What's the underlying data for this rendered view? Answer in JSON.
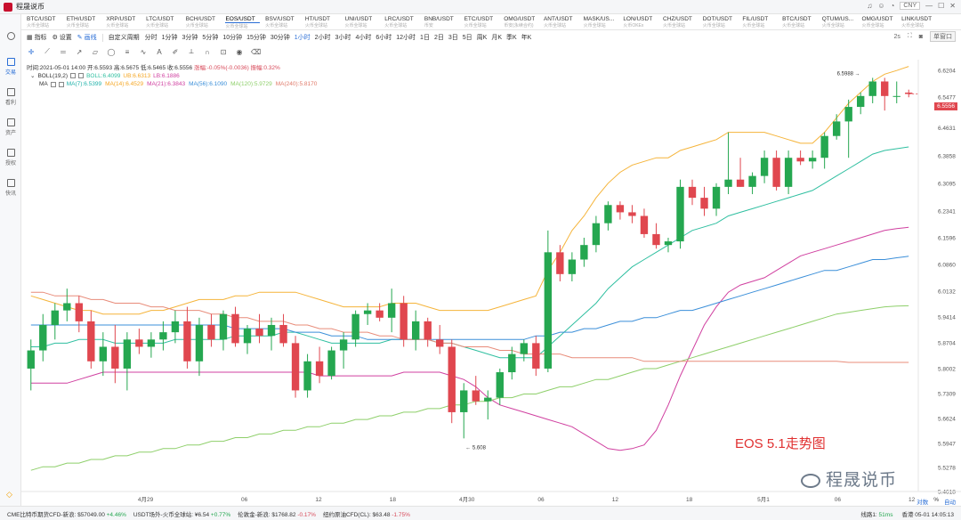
{
  "app": {
    "title": "程晟说币",
    "currency": "CNY"
  },
  "tickers": [
    {
      "sym": "BTC/USDT",
      "sub": "火币全球站"
    },
    {
      "sym": "ETH/USDT",
      "sub": "火币全球站"
    },
    {
      "sym": "XRP/USDT",
      "sub": "火币全球站"
    },
    {
      "sym": "LTC/USDT",
      "sub": "火币全球站"
    },
    {
      "sym": "BCH/USDT",
      "sub": "火币全球站"
    },
    {
      "sym": "EOS/USDT",
      "sub": "火币全球站"
    },
    {
      "sym": "BSV/USDT",
      "sub": "火币全球站"
    },
    {
      "sym": "HT/USDT",
      "sub": "火币全球站"
    },
    {
      "sym": "UNI/USDT",
      "sub": "火币全球站"
    },
    {
      "sym": "LRC/USDT",
      "sub": "火币全球站"
    },
    {
      "sym": "BNB/USDT",
      "sub": "币安"
    },
    {
      "sym": "ETC/USDT",
      "sub": "火币全球站"
    },
    {
      "sym": "OMG/USDT",
      "sub": "币安(永续合约)"
    },
    {
      "sym": "ANT/USDT",
      "sub": "火币全球站"
    },
    {
      "sym": "MASK/US...",
      "sub": "火币全球站"
    },
    {
      "sym": "LON/USDT",
      "sub": "火币OKEx"
    },
    {
      "sym": "CHZ/USDT",
      "sub": "火币全球站"
    },
    {
      "sym": "DOT/USDT",
      "sub": "火币全球站"
    },
    {
      "sym": "FIL/USDT",
      "sub": "火币全球站"
    },
    {
      "sym": "BTC/USDT",
      "sub": "火币全球站"
    },
    {
      "sym": "QTUM/US...",
      "sub": "火币全球站"
    },
    {
      "sym": "OMG/USDT",
      "sub": "火币全球站"
    },
    {
      "sym": "LINK/USDT",
      "sub": "火币全球站"
    }
  ],
  "sidebar": [
    {
      "label": "交易"
    },
    {
      "label": "看利"
    },
    {
      "label": "资产"
    },
    {
      "label": "授权"
    },
    {
      "label": "快讯"
    }
  ],
  "toolbar": {
    "indicator": "指标",
    "settings": "设置",
    "drawing": "画线",
    "custom_period": "自定义周期",
    "timeframes": [
      "分时",
      "1分钟",
      "3分钟",
      "5分钟",
      "10分钟",
      "15分钟",
      "30分钟",
      "1小时",
      "2小时",
      "3小时",
      "4小时",
      "6小时",
      "12小时",
      "1日",
      "2日",
      "3日",
      "5日",
      "周K",
      "月K",
      "季K",
      "年K"
    ],
    "active_timeframe": "1小时",
    "right": [
      "2s",
      "单窗口"
    ]
  },
  "info": {
    "time": "时间:2021-05-01 14:00",
    "open": "开:6.5593",
    "high": "高:6.5675",
    "low": "低:6.5465",
    "close": "收:6.5556",
    "change": "涨幅:-0.05%(-0.0036)",
    "amplitude": "振幅:0.32%"
  },
  "boll": {
    "name": "BOLL(19,2)",
    "boll": "BOLL:6.4099",
    "ub": "UB:6.6313",
    "lb": "LB:6.1886"
  },
  "ma": {
    "name": "MA",
    "items": [
      {
        "label": "MA(7):6.5399",
        "color": "#20b2aa"
      },
      {
        "label": "MA(14):6.4529",
        "color": "#f5a623"
      },
      {
        "label": "MA(21):6.3843",
        "color": "#d040a0"
      },
      {
        "label": "MA(56):6.1090",
        "color": "#3b8fd9"
      },
      {
        "label": "MA(120):5.9729",
        "color": "#8ecf6a"
      },
      {
        "label": "MA(240):5.8170",
        "color": "#e07a6a"
      }
    ]
  },
  "price_axis": [
    "6.6204",
    "6.5477",
    "6.4631",
    "6.3858",
    "6.3095",
    "6.2341",
    "6.1596",
    "6.0860",
    "6.0132",
    "5.9414",
    "5.8704",
    "5.8002",
    "5.7309",
    "5.6624",
    "5.5947",
    "5.5278",
    "5.4618"
  ],
  "current_price": "6.5556",
  "high_label": "6.5988",
  "low_label": "5.608",
  "time_axis": [
    "4月29",
    "06",
    "12",
    "18",
    "4月30",
    "06",
    "12",
    "18",
    "5月1",
    "06",
    "12"
  ],
  "colors": {
    "up": "#25a750",
    "down": "#e0474f",
    "accent": "#2a6ed6"
  },
  "chart_data": {
    "type": "candlestick",
    "title": "EOS 5.1走势图",
    "ylim": [
      5.4618,
      6.65
    ],
    "candles": [
      {
        "o": 5.8,
        "h": 5.88,
        "l": 5.74,
        "c": 5.85
      },
      {
        "o": 5.85,
        "h": 5.95,
        "l": 5.82,
        "c": 5.92
      },
      {
        "o": 5.92,
        "h": 5.98,
        "l": 5.88,
        "c": 5.96
      },
      {
        "o": 5.96,
        "h": 6.02,
        "l": 5.93,
        "c": 5.98
      },
      {
        "o": 5.98,
        "h": 6.0,
        "l": 5.9,
        "c": 5.93
      },
      {
        "o": 5.93,
        "h": 5.96,
        "l": 5.8,
        "c": 5.82
      },
      {
        "o": 5.82,
        "h": 5.9,
        "l": 5.78,
        "c": 5.86
      },
      {
        "o": 5.86,
        "h": 5.92,
        "l": 5.76,
        "c": 5.8
      },
      {
        "o": 5.8,
        "h": 5.9,
        "l": 5.74,
        "c": 5.88
      },
      {
        "o": 5.88,
        "h": 5.91,
        "l": 5.84,
        "c": 5.86
      },
      {
        "o": 5.86,
        "h": 5.9,
        "l": 5.83,
        "c": 5.88
      },
      {
        "o": 5.88,
        "h": 5.93,
        "l": 5.85,
        "c": 5.9
      },
      {
        "o": 5.9,
        "h": 5.96,
        "l": 5.87,
        "c": 5.93
      },
      {
        "o": 5.93,
        "h": 5.97,
        "l": 5.8,
        "c": 5.82
      },
      {
        "o": 5.82,
        "h": 5.94,
        "l": 5.78,
        "c": 5.92
      },
      {
        "o": 5.92,
        "h": 5.95,
        "l": 5.86,
        "c": 5.88
      },
      {
        "o": 5.88,
        "h": 5.96,
        "l": 5.85,
        "c": 5.95
      },
      {
        "o": 5.95,
        "h": 5.97,
        "l": 5.86,
        "c": 5.87
      },
      {
        "o": 5.87,
        "h": 5.92,
        "l": 5.84,
        "c": 5.91
      },
      {
        "o": 5.91,
        "h": 5.95,
        "l": 5.87,
        "c": 5.89
      },
      {
        "o": 5.89,
        "h": 5.94,
        "l": 5.85,
        "c": 5.92
      },
      {
        "o": 5.92,
        "h": 5.95,
        "l": 5.86,
        "c": 5.87
      },
      {
        "o": 5.87,
        "h": 5.89,
        "l": 5.72,
        "c": 5.74
      },
      {
        "o": 5.74,
        "h": 5.84,
        "l": 5.72,
        "c": 5.82
      },
      {
        "o": 5.82,
        "h": 5.86,
        "l": 5.76,
        "c": 5.78
      },
      {
        "o": 5.78,
        "h": 5.86,
        "l": 5.77,
        "c": 5.85
      },
      {
        "o": 5.85,
        "h": 5.9,
        "l": 5.8,
        "c": 5.88
      },
      {
        "o": 5.88,
        "h": 5.96,
        "l": 5.86,
        "c": 5.95
      },
      {
        "o": 5.95,
        "h": 5.98,
        "l": 5.92,
        "c": 5.96
      },
      {
        "o": 5.96,
        "h": 5.98,
        "l": 5.93,
        "c": 5.94
      },
      {
        "o": 5.94,
        "h": 6.02,
        "l": 5.9,
        "c": 5.98
      },
      {
        "o": 5.98,
        "h": 6.0,
        "l": 5.86,
        "c": 5.88
      },
      {
        "o": 5.88,
        "h": 5.96,
        "l": 5.85,
        "c": 5.93
      },
      {
        "o": 5.93,
        "h": 5.94,
        "l": 5.86,
        "c": 5.88
      },
      {
        "o": 5.88,
        "h": 5.92,
        "l": 5.84,
        "c": 5.86
      },
      {
        "o": 5.86,
        "h": 5.88,
        "l": 5.65,
        "c": 5.68
      },
      {
        "o": 5.68,
        "h": 5.76,
        "l": 5.608,
        "c": 5.74
      },
      {
        "o": 5.74,
        "h": 5.78,
        "l": 5.7,
        "c": 5.71
      },
      {
        "o": 5.71,
        "h": 5.74,
        "l": 5.66,
        "c": 5.72
      },
      {
        "o": 5.72,
        "h": 5.8,
        "l": 5.7,
        "c": 5.79
      },
      {
        "o": 5.79,
        "h": 5.86,
        "l": 5.77,
        "c": 5.84
      },
      {
        "o": 5.84,
        "h": 5.88,
        "l": 5.82,
        "c": 5.87
      },
      {
        "o": 5.87,
        "h": 5.89,
        "l": 5.78,
        "c": 5.8
      },
      {
        "o": 5.8,
        "h": 6.18,
        "l": 5.79,
        "c": 6.12
      },
      {
        "o": 6.12,
        "h": 6.14,
        "l": 6.04,
        "c": 6.06
      },
      {
        "o": 6.06,
        "h": 6.12,
        "l": 6.04,
        "c": 6.1
      },
      {
        "o": 6.1,
        "h": 6.16,
        "l": 6.08,
        "c": 6.14
      },
      {
        "o": 6.14,
        "h": 6.22,
        "l": 6.12,
        "c": 6.2
      },
      {
        "o": 6.2,
        "h": 6.26,
        "l": 6.18,
        "c": 6.25
      },
      {
        "o": 6.25,
        "h": 6.26,
        "l": 6.21,
        "c": 6.23
      },
      {
        "o": 6.23,
        "h": 6.25,
        "l": 6.2,
        "c": 6.22
      },
      {
        "o": 6.22,
        "h": 6.24,
        "l": 6.16,
        "c": 6.17
      },
      {
        "o": 6.17,
        "h": 6.2,
        "l": 6.13,
        "c": 6.14
      },
      {
        "o": 6.14,
        "h": 6.16,
        "l": 6.12,
        "c": 6.15
      },
      {
        "o": 6.15,
        "h": 6.32,
        "l": 6.13,
        "c": 6.3
      },
      {
        "o": 6.3,
        "h": 6.32,
        "l": 6.25,
        "c": 6.27
      },
      {
        "o": 6.27,
        "h": 6.3,
        "l": 6.22,
        "c": 6.24
      },
      {
        "o": 6.24,
        "h": 6.31,
        "l": 6.22,
        "c": 6.3
      },
      {
        "o": 6.3,
        "h": 6.45,
        "l": 6.28,
        "c": 6.32
      },
      {
        "o": 6.32,
        "h": 6.38,
        "l": 6.3,
        "c": 6.3
      },
      {
        "o": 6.3,
        "h": 6.34,
        "l": 6.28,
        "c": 6.33
      },
      {
        "o": 6.33,
        "h": 6.4,
        "l": 6.31,
        "c": 6.38
      },
      {
        "o": 6.38,
        "h": 6.4,
        "l": 6.29,
        "c": 6.3
      },
      {
        "o": 6.3,
        "h": 6.4,
        "l": 6.28,
        "c": 6.38
      },
      {
        "o": 6.38,
        "h": 6.4,
        "l": 6.36,
        "c": 6.37
      },
      {
        "o": 6.37,
        "h": 6.4,
        "l": 6.35,
        "c": 6.38
      },
      {
        "o": 6.38,
        "h": 6.45,
        "l": 6.35,
        "c": 6.44
      },
      {
        "o": 6.44,
        "h": 6.5,
        "l": 6.43,
        "c": 6.48
      },
      {
        "o": 6.48,
        "h": 6.54,
        "l": 6.38,
        "c": 6.52
      },
      {
        "o": 6.52,
        "h": 6.56,
        "l": 6.5,
        "c": 6.55
      },
      {
        "o": 6.55,
        "h": 6.6,
        "l": 6.53,
        "c": 6.59
      },
      {
        "o": 6.59,
        "h": 6.6,
        "l": 6.51,
        "c": 6.55
      },
      {
        "o": 6.55,
        "h": 6.59,
        "l": 6.53,
        "c": 6.55
      },
      {
        "o": 6.5593,
        "h": 6.5675,
        "l": 6.5465,
        "c": 6.5556
      }
    ],
    "series": [
      {
        "name": "BOLL UB",
        "color": "#f5b43a",
        "values": [
          6.0,
          5.99,
          5.98,
          5.97,
          5.96,
          5.96,
          5.95,
          5.95,
          5.95,
          5.95,
          5.96,
          5.96,
          5.97,
          5.98,
          5.99,
          5.99,
          5.99,
          6.0,
          6.0,
          6.01,
          6.01,
          6.01,
          6.01,
          6.0,
          5.99,
          5.98,
          5.97,
          5.97,
          5.97,
          5.97,
          5.98,
          5.98,
          5.98,
          5.97,
          5.96,
          5.96,
          5.96,
          5.96,
          5.96,
          5.97,
          5.98,
          5.99,
          6.0,
          6.07,
          6.12,
          6.18,
          6.22,
          6.27,
          6.31,
          6.34,
          6.36,
          6.37,
          6.38,
          6.38,
          6.4,
          6.41,
          6.42,
          6.43,
          6.45,
          6.45,
          6.45,
          6.45,
          6.44,
          6.43,
          6.42,
          6.42,
          6.45,
          6.49,
          6.53,
          6.56,
          6.59,
          6.61,
          6.62,
          6.6313
        ]
      },
      {
        "name": "BOLL",
        "color": "#2fbfa0",
        "values": [
          5.86,
          5.86,
          5.87,
          5.87,
          5.88,
          5.88,
          5.88,
          5.87,
          5.87,
          5.87,
          5.87,
          5.87,
          5.88,
          5.88,
          5.88,
          5.88,
          5.88,
          5.89,
          5.89,
          5.89,
          5.89,
          5.9,
          5.9,
          5.89,
          5.88,
          5.87,
          5.87,
          5.87,
          5.87,
          5.87,
          5.88,
          5.88,
          5.88,
          5.88,
          5.87,
          5.87,
          5.86,
          5.85,
          5.84,
          5.83,
          5.83,
          5.83,
          5.83,
          5.86,
          5.89,
          5.92,
          5.95,
          5.98,
          6.02,
          6.05,
          6.08,
          6.1,
          6.12,
          6.14,
          6.16,
          6.18,
          6.19,
          6.2,
          6.22,
          6.23,
          6.24,
          6.25,
          6.26,
          6.27,
          6.28,
          6.29,
          6.31,
          6.33,
          6.35,
          6.37,
          6.39,
          6.4,
          6.405,
          6.4099
        ]
      },
      {
        "name": "BOLL LB",
        "color": "#d040a0",
        "values": [
          5.76,
          5.76,
          5.76,
          5.76,
          5.77,
          5.78,
          5.79,
          5.79,
          5.79,
          5.79,
          5.79,
          5.79,
          5.79,
          5.79,
          5.79,
          5.79,
          5.79,
          5.79,
          5.79,
          5.79,
          5.79,
          5.79,
          5.79,
          5.79,
          5.78,
          5.78,
          5.78,
          5.78,
          5.78,
          5.78,
          5.78,
          5.79,
          5.79,
          5.79,
          5.79,
          5.78,
          5.77,
          5.75,
          5.72,
          5.7,
          5.69,
          5.68,
          5.67,
          5.66,
          5.65,
          5.64,
          5.62,
          5.6,
          5.58,
          5.575,
          5.58,
          5.59,
          5.63,
          5.7,
          5.78,
          5.85,
          5.92,
          5.97,
          6.01,
          6.03,
          6.04,
          6.05,
          6.07,
          6.09,
          6.11,
          6.12,
          6.13,
          6.14,
          6.15,
          6.16,
          6.17,
          6.18,
          6.185,
          6.1886
        ]
      },
      {
        "name": "MA(56)",
        "color": "#3b8fd9",
        "values": [
          5.92,
          5.92,
          5.92,
          5.92,
          5.92,
          5.92,
          5.92,
          5.92,
          5.92,
          5.92,
          5.92,
          5.92,
          5.92,
          5.92,
          5.92,
          5.92,
          5.92,
          5.91,
          5.91,
          5.91,
          5.91,
          5.91,
          5.9,
          5.9,
          5.9,
          5.89,
          5.89,
          5.89,
          5.88,
          5.88,
          5.88,
          5.88,
          5.88,
          5.88,
          5.88,
          5.88,
          5.88,
          5.88,
          5.88,
          5.88,
          5.88,
          5.88,
          5.89,
          5.89,
          5.9,
          5.9,
          5.91,
          5.91,
          5.92,
          5.93,
          5.93,
          5.94,
          5.94,
          5.95,
          5.96,
          5.96,
          5.97,
          5.98,
          5.99,
          6.0,
          6.01,
          6.02,
          6.03,
          6.04,
          6.05,
          6.06,
          6.07,
          6.07,
          6.08,
          6.09,
          6.1,
          6.1,
          6.105,
          6.109
        ]
      },
      {
        "name": "MA(120)",
        "color": "#8ecf6a",
        "values": [
          5.52,
          5.53,
          5.53,
          5.54,
          5.54,
          5.55,
          5.55,
          5.56,
          5.56,
          5.57,
          5.57,
          5.58,
          5.58,
          5.59,
          5.59,
          5.6,
          5.6,
          5.61,
          5.61,
          5.62,
          5.62,
          5.63,
          5.63,
          5.64,
          5.64,
          5.65,
          5.65,
          5.66,
          5.66,
          5.67,
          5.67,
          5.68,
          5.68,
          5.69,
          5.69,
          5.7,
          5.7,
          5.71,
          5.71,
          5.72,
          5.72,
          5.73,
          5.73,
          5.74,
          5.75,
          5.75,
          5.76,
          5.77,
          5.77,
          5.78,
          5.79,
          5.8,
          5.8,
          5.81,
          5.82,
          5.83,
          5.84,
          5.85,
          5.86,
          5.87,
          5.88,
          5.89,
          5.9,
          5.91,
          5.92,
          5.93,
          5.94,
          5.95,
          5.955,
          5.96,
          5.965,
          5.97,
          5.972,
          5.9729
        ]
      },
      {
        "name": "MA(240)",
        "color": "#e88c7a",
        "values": [
          6.01,
          6.01,
          6.0,
          6.0,
          6.0,
          5.99,
          5.99,
          5.98,
          5.98,
          5.98,
          5.97,
          5.97,
          5.96,
          5.96,
          5.96,
          5.95,
          5.95,
          5.94,
          5.94,
          5.93,
          5.93,
          5.93,
          5.92,
          5.92,
          5.91,
          5.91,
          5.9,
          5.9,
          5.9,
          5.89,
          5.89,
          5.88,
          5.88,
          5.88,
          5.87,
          5.87,
          5.86,
          5.86,
          5.86,
          5.85,
          5.85,
          5.84,
          5.84,
          5.84,
          5.84,
          5.83,
          5.83,
          5.83,
          5.83,
          5.83,
          5.83,
          5.82,
          5.82,
          5.82,
          5.82,
          5.82,
          5.82,
          5.82,
          5.82,
          5.82,
          5.82,
          5.82,
          5.82,
          5.82,
          5.82,
          5.82,
          5.82,
          5.82,
          5.817,
          5.817,
          5.817,
          5.817,
          5.817,
          5.817
        ]
      }
    ]
  }
}
